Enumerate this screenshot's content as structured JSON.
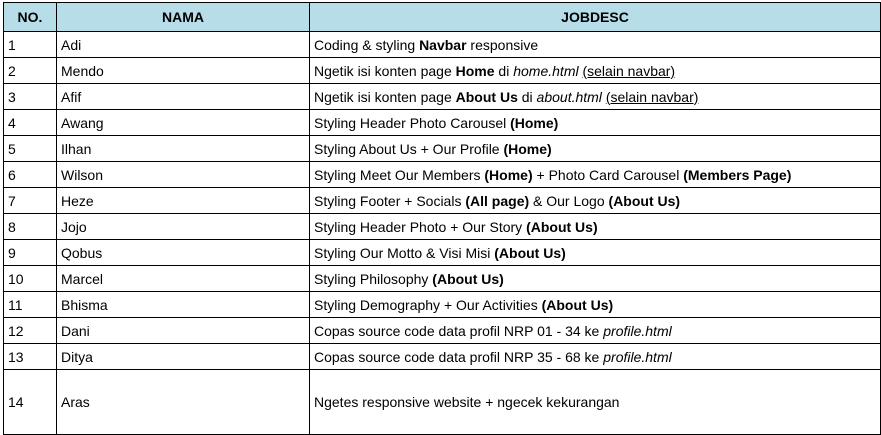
{
  "table": {
    "headers": {
      "no": "NO.",
      "nama": "NAMA",
      "jobdesc": "JOBDESC"
    },
    "header_bg": "#b7dde8",
    "rows": [
      {
        "no": "1",
        "nama": "Adi",
        "job": [
          {
            "t": "Coding & styling "
          },
          {
            "t": "Navbar",
            "b": true
          },
          {
            "t": " responsive"
          }
        ]
      },
      {
        "no": "2",
        "nama": "Mendo",
        "job": [
          {
            "t": "Ngetik isi konten page "
          },
          {
            "t": "Home",
            "b": true
          },
          {
            "t": " di "
          },
          {
            "t": "home.html",
            "i": true
          },
          {
            "t": " "
          },
          {
            "t": "(selain navbar)",
            "u": true
          }
        ]
      },
      {
        "no": "3",
        "nama": "Afif",
        "job": [
          {
            "t": "Ngetik isi konten page "
          },
          {
            "t": "About Us",
            "b": true
          },
          {
            "t": " di "
          },
          {
            "t": "about.html",
            "i": true
          },
          {
            "t": " "
          },
          {
            "t": "(selain navbar)",
            "u": true
          }
        ]
      },
      {
        "no": "4",
        "nama": "Awang",
        "job": [
          {
            "t": "Styling Header Photo Carousel "
          },
          {
            "t": "(Home)",
            "b": true
          }
        ]
      },
      {
        "no": "5",
        "nama": "Ilhan",
        "job": [
          {
            "t": "Styling About Us + Our Profile "
          },
          {
            "t": "(Home)",
            "b": true
          }
        ]
      },
      {
        "no": "6",
        "nama": "Wilson",
        "job": [
          {
            "t": "Styling Meet Our Members "
          },
          {
            "t": "(Home)",
            "b": true
          },
          {
            "t": " + Photo Card Carousel "
          },
          {
            "t": "(Members Page)",
            "b": true
          }
        ]
      },
      {
        "no": "7",
        "nama": "Heze",
        "job": [
          {
            "t": "Styling Footer + Socials "
          },
          {
            "t": "(All page)",
            "b": true
          },
          {
            "t": " & Our Logo "
          },
          {
            "t": "(About Us)",
            "b": true
          }
        ]
      },
      {
        "no": "8",
        "nama": "Jojo",
        "job": [
          {
            "t": "Styling Header Photo + Our Story "
          },
          {
            "t": "(About Us)",
            "b": true
          }
        ]
      },
      {
        "no": "9",
        "nama": "Qobus",
        "job": [
          {
            "t": "Styling Our Motto & Visi Misi "
          },
          {
            "t": "(About Us)",
            "b": true
          }
        ]
      },
      {
        "no": "10",
        "nama": "Marcel",
        "job": [
          {
            "t": "Styling Philosophy "
          },
          {
            "t": "(About Us)",
            "b": true
          }
        ]
      },
      {
        "no": "11",
        "nama": "Bhisma",
        "job": [
          {
            "t": "Styling Demography + Our Activities "
          },
          {
            "t": "(About Us)",
            "b": true
          }
        ]
      },
      {
        "no": "12",
        "nama": "Dani",
        "job": [
          {
            "t": "Copas source code data profil NRP 01 - 34 ke "
          },
          {
            "t": "profile.html",
            "i": true
          }
        ]
      },
      {
        "no": "13",
        "nama": "Ditya",
        "job": [
          {
            "t": "Copas source code data profil NRP 35 - 68 ke "
          },
          {
            "t": "profile.html",
            "i": true
          }
        ]
      },
      {
        "no": "14",
        "nama": "Aras",
        "tall": true,
        "job": [
          {
            "t": "Ngetes responsive website + ngecek kekurangan"
          }
        ]
      }
    ]
  }
}
